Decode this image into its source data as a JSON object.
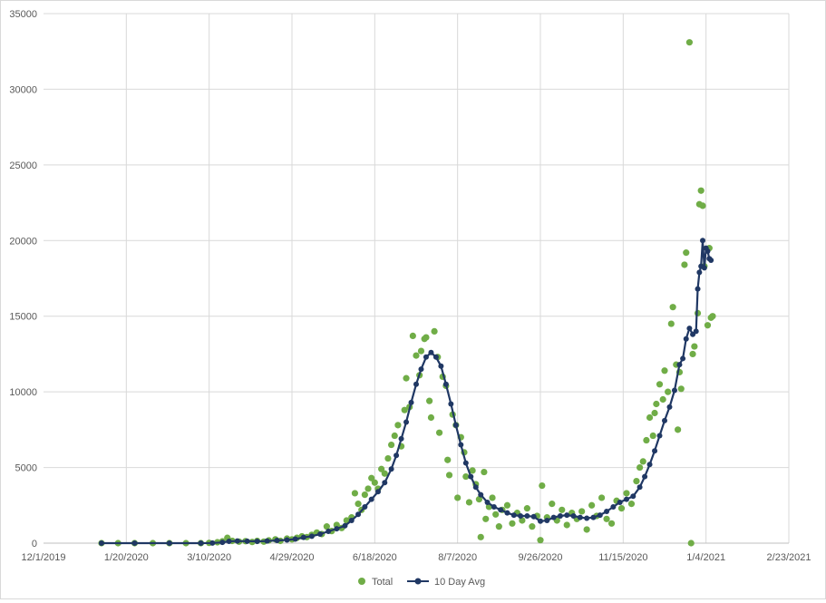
{
  "chart_data": {
    "type": "scatter",
    "title": "",
    "xlabel": "",
    "ylabel": "",
    "x_ticks": [
      "12/1/2019",
      "1/20/2020",
      "3/10/2020",
      "4/29/2020",
      "6/18/2020",
      "8/7/2020",
      "9/26/2020",
      "11/15/2020",
      "1/4/2021",
      "2/23/2021"
    ],
    "y_ticks": [
      "0",
      "5000",
      "10000",
      "15000",
      "20000",
      "25000",
      "30000",
      "35000"
    ],
    "xlim": [
      "2019-12-01",
      "2021-02-23"
    ],
    "ylim": [
      0,
      35000
    ],
    "grid": true,
    "legend_position": "bottom",
    "colors": {
      "total": "#70ad47",
      "avg": "#203864"
    },
    "series": [
      {
        "name": "Total",
        "style": "markers",
        "points": [
          [
            "2020-01-05",
            0
          ],
          [
            "2020-01-15",
            0
          ],
          [
            "2020-01-25",
            0
          ],
          [
            "2020-02-05",
            0
          ],
          [
            "2020-02-15",
            0
          ],
          [
            "2020-02-25",
            0
          ],
          [
            "2020-03-05",
            0
          ],
          [
            "2020-03-10",
            20
          ],
          [
            "2020-03-15",
            60
          ],
          [
            "2020-03-18",
            120
          ],
          [
            "2020-03-21",
            350
          ],
          [
            "2020-03-24",
            150
          ],
          [
            "2020-03-28",
            100
          ],
          [
            "2020-04-01",
            130
          ],
          [
            "2020-04-05",
            80
          ],
          [
            "2020-04-08",
            150
          ],
          [
            "2020-04-12",
            100
          ],
          [
            "2020-04-15",
            180
          ],
          [
            "2020-04-19",
            250
          ],
          [
            "2020-04-22",
            150
          ],
          [
            "2020-04-26",
            300
          ],
          [
            "2020-04-29",
            250
          ],
          [
            "2020-05-02",
            350
          ],
          [
            "2020-05-05",
            450
          ],
          [
            "2020-05-08",
            400
          ],
          [
            "2020-05-11",
            550
          ],
          [
            "2020-05-14",
            700
          ],
          [
            "2020-05-17",
            600
          ],
          [
            "2020-05-20",
            1100
          ],
          [
            "2020-05-23",
            800
          ],
          [
            "2020-05-26",
            1200
          ],
          [
            "2020-05-29",
            1000
          ],
          [
            "2020-06-01",
            1500
          ],
          [
            "2020-06-04",
            1700
          ],
          [
            "2020-06-06",
            3300
          ],
          [
            "2020-06-08",
            2600
          ],
          [
            "2020-06-10",
            2200
          ],
          [
            "2020-06-12",
            3200
          ],
          [
            "2020-06-14",
            3600
          ],
          [
            "2020-06-16",
            4300
          ],
          [
            "2020-06-18",
            4000
          ],
          [
            "2020-06-20",
            3600
          ],
          [
            "2020-06-22",
            4900
          ],
          [
            "2020-06-24",
            4600
          ],
          [
            "2020-06-26",
            5600
          ],
          [
            "2020-06-28",
            6500
          ],
          [
            "2020-06-30",
            7100
          ],
          [
            "2020-07-02",
            7800
          ],
          [
            "2020-07-04",
            6400
          ],
          [
            "2020-07-06",
            8800
          ],
          [
            "2020-07-07",
            10900
          ],
          [
            "2020-07-09",
            9000
          ],
          [
            "2020-07-11",
            13700
          ],
          [
            "2020-07-13",
            12400
          ],
          [
            "2020-07-15",
            11100
          ],
          [
            "2020-07-16",
            12700
          ],
          [
            "2020-07-18",
            13500
          ],
          [
            "2020-07-19",
            13600
          ],
          [
            "2020-07-21",
            9400
          ],
          [
            "2020-07-22",
            8300
          ],
          [
            "2020-07-24",
            14000
          ],
          [
            "2020-07-26",
            12300
          ],
          [
            "2020-07-27",
            7300
          ],
          [
            "2020-07-29",
            11000
          ],
          [
            "2020-07-31",
            10400
          ],
          [
            "2020-08-01",
            5500
          ],
          [
            "2020-08-02",
            4500
          ],
          [
            "2020-08-04",
            8500
          ],
          [
            "2020-08-06",
            7800
          ],
          [
            "2020-08-07",
            3000
          ],
          [
            "2020-08-09",
            7000
          ],
          [
            "2020-08-11",
            6000
          ],
          [
            "2020-08-12",
            4400
          ],
          [
            "2020-08-14",
            2700
          ],
          [
            "2020-08-16",
            4800
          ],
          [
            "2020-08-18",
            3900
          ],
          [
            "2020-08-20",
            2900
          ],
          [
            "2020-08-21",
            400
          ],
          [
            "2020-08-23",
            4700
          ],
          [
            "2020-08-24",
            1600
          ],
          [
            "2020-08-26",
            2400
          ],
          [
            "2020-08-28",
            3000
          ],
          [
            "2020-08-30",
            1900
          ],
          [
            "2020-09-01",
            1100
          ],
          [
            "2020-09-03",
            2200
          ],
          [
            "2020-09-06",
            2500
          ],
          [
            "2020-09-09",
            1300
          ],
          [
            "2020-09-12",
            2000
          ],
          [
            "2020-09-15",
            1500
          ],
          [
            "2020-09-18",
            2300
          ],
          [
            "2020-09-21",
            1100
          ],
          [
            "2020-09-24",
            1800
          ],
          [
            "2020-09-26",
            200
          ],
          [
            "2020-09-27",
            3800
          ],
          [
            "2020-09-30",
            1700
          ],
          [
            "2020-10-03",
            2600
          ],
          [
            "2020-10-06",
            1500
          ],
          [
            "2020-10-09",
            2200
          ],
          [
            "2020-10-12",
            1200
          ],
          [
            "2020-10-15",
            2000
          ],
          [
            "2020-10-18",
            1600
          ],
          [
            "2020-10-21",
            2100
          ],
          [
            "2020-10-24",
            900
          ],
          [
            "2020-10-27",
            2500
          ],
          [
            "2020-10-30",
            1800
          ],
          [
            "2020-11-02",
            3000
          ],
          [
            "2020-11-05",
            1600
          ],
          [
            "2020-11-08",
            1300
          ],
          [
            "2020-11-11",
            2800
          ],
          [
            "2020-11-14",
            2300
          ],
          [
            "2020-11-17",
            3300
          ],
          [
            "2020-11-20",
            2600
          ],
          [
            "2020-11-23",
            4100
          ],
          [
            "2020-11-25",
            5000
          ],
          [
            "2020-11-27",
            5400
          ],
          [
            "2020-11-29",
            6800
          ],
          [
            "2020-12-01",
            8300
          ],
          [
            "2020-12-03",
            7100
          ],
          [
            "2020-12-04",
            8600
          ],
          [
            "2020-12-05",
            9200
          ],
          [
            "2020-12-07",
            10500
          ],
          [
            "2020-12-09",
            9500
          ],
          [
            "2020-12-10",
            11400
          ],
          [
            "2020-12-12",
            10000
          ],
          [
            "2020-12-14",
            14500
          ],
          [
            "2020-12-15",
            15600
          ],
          [
            "2020-12-17",
            11800
          ],
          [
            "2020-12-18",
            7500
          ],
          [
            "2020-12-19",
            11300
          ],
          [
            "2020-12-20",
            10200
          ],
          [
            "2020-12-22",
            18400
          ],
          [
            "2020-12-23",
            19200
          ],
          [
            "2020-12-25",
            33100
          ],
          [
            "2020-12-26",
            0
          ],
          [
            "2020-12-27",
            12500
          ],
          [
            "2020-12-28",
            13000
          ],
          [
            "2020-12-30",
            15200
          ],
          [
            "2020-12-31",
            22400
          ],
          [
            "2021-01-01",
            23300
          ],
          [
            "2021-01-02",
            22300
          ],
          [
            "2021-01-03",
            18300
          ],
          [
            "2021-01-05",
            14400
          ],
          [
            "2021-01-06",
            19500
          ],
          [
            "2021-01-07",
            14900
          ],
          [
            "2021-01-08",
            15000
          ]
        ]
      },
      {
        "name": "10 Day Avg",
        "style": "line-markers",
        "points": [
          [
            "2020-01-05",
            0
          ],
          [
            "2020-01-25",
            0
          ],
          [
            "2020-02-15",
            0
          ],
          [
            "2020-03-05",
            0
          ],
          [
            "2020-03-12",
            10
          ],
          [
            "2020-03-18",
            50
          ],
          [
            "2020-03-22",
            120
          ],
          [
            "2020-03-27",
            140
          ],
          [
            "2020-04-02",
            130
          ],
          [
            "2020-04-08",
            120
          ],
          [
            "2020-04-14",
            140
          ],
          [
            "2020-04-20",
            180
          ],
          [
            "2020-04-26",
            210
          ],
          [
            "2020-05-01",
            270
          ],
          [
            "2020-05-06",
            380
          ],
          [
            "2020-05-11",
            460
          ],
          [
            "2020-05-16",
            600
          ],
          [
            "2020-05-21",
            780
          ],
          [
            "2020-05-26",
            950
          ],
          [
            "2020-05-31",
            1150
          ],
          [
            "2020-06-04",
            1500
          ],
          [
            "2020-06-08",
            1900
          ],
          [
            "2020-06-12",
            2400
          ],
          [
            "2020-06-16",
            2900
          ],
          [
            "2020-06-20",
            3400
          ],
          [
            "2020-06-24",
            4000
          ],
          [
            "2020-06-28",
            4900
          ],
          [
            "2020-07-01",
            5800
          ],
          [
            "2020-07-04",
            6900
          ],
          [
            "2020-07-07",
            8000
          ],
          [
            "2020-07-10",
            9300
          ],
          [
            "2020-07-13",
            10500
          ],
          [
            "2020-07-16",
            11500
          ],
          [
            "2020-07-19",
            12300
          ],
          [
            "2020-07-22",
            12600
          ],
          [
            "2020-07-25",
            12300
          ],
          [
            "2020-07-28",
            11700
          ],
          [
            "2020-07-31",
            10500
          ],
          [
            "2020-08-03",
            9200
          ],
          [
            "2020-08-06",
            7800
          ],
          [
            "2020-08-09",
            6500
          ],
          [
            "2020-08-12",
            5300
          ],
          [
            "2020-08-15",
            4400
          ],
          [
            "2020-08-18",
            3700
          ],
          [
            "2020-08-21",
            3200
          ],
          [
            "2020-08-25",
            2700
          ],
          [
            "2020-08-29",
            2400
          ],
          [
            "2020-09-02",
            2200
          ],
          [
            "2020-09-06",
            2000
          ],
          [
            "2020-09-10",
            1850
          ],
          [
            "2020-09-14",
            1800
          ],
          [
            "2020-09-18",
            1800
          ],
          [
            "2020-09-22",
            1750
          ],
          [
            "2020-09-26",
            1450
          ],
          [
            "2020-09-30",
            1500
          ],
          [
            "2020-10-04",
            1700
          ],
          [
            "2020-10-08",
            1800
          ],
          [
            "2020-10-12",
            1850
          ],
          [
            "2020-10-16",
            1800
          ],
          [
            "2020-10-20",
            1700
          ],
          [
            "2020-10-24",
            1650
          ],
          [
            "2020-10-28",
            1700
          ],
          [
            "2020-11-01",
            1850
          ],
          [
            "2020-11-05",
            2100
          ],
          [
            "2020-11-09",
            2400
          ],
          [
            "2020-11-13",
            2700
          ],
          [
            "2020-11-17",
            2900
          ],
          [
            "2020-11-21",
            3100
          ],
          [
            "2020-11-25",
            3700
          ],
          [
            "2020-11-28",
            4400
          ],
          [
            "2020-12-01",
            5200
          ],
          [
            "2020-12-04",
            6100
          ],
          [
            "2020-12-07",
            7100
          ],
          [
            "2020-12-10",
            8100
          ],
          [
            "2020-12-13",
            9000
          ],
          [
            "2020-12-16",
            10100
          ],
          [
            "2020-12-19",
            11800
          ],
          [
            "2020-12-21",
            12200
          ],
          [
            "2020-12-23",
            13500
          ],
          [
            "2020-12-25",
            14200
          ],
          [
            "2020-12-27",
            13800
          ],
          [
            "2020-12-29",
            14000
          ],
          [
            "2020-12-30",
            16800
          ],
          [
            "2020-12-31",
            17900
          ],
          [
            "2021-01-01",
            18300
          ],
          [
            "2021-01-02",
            20000
          ],
          [
            "2021-01-03",
            18200
          ],
          [
            "2021-01-04",
            19500
          ],
          [
            "2021-01-05",
            19300
          ],
          [
            "2021-01-06",
            18800
          ],
          [
            "2021-01-07",
            18700
          ]
        ]
      }
    ]
  }
}
